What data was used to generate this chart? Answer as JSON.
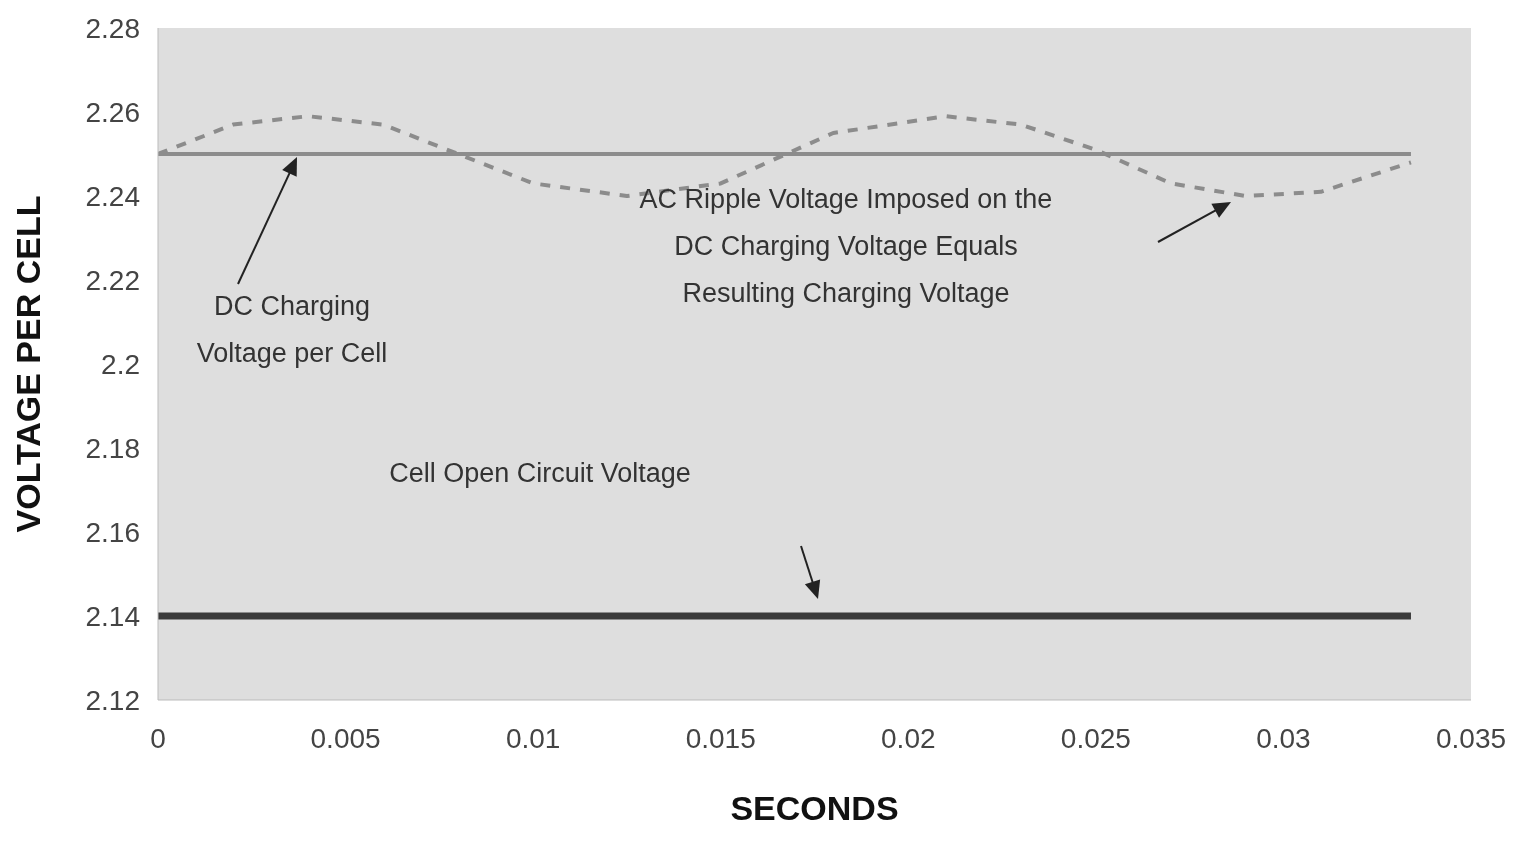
{
  "chart_data": {
    "type": "line",
    "xlabel": "SECONDS",
    "ylabel": "VOLTAGE PER CELL",
    "xlim": [
      0,
      0.035
    ],
    "xticks": [
      0,
      0.005,
      0.01,
      0.015,
      0.02,
      0.025,
      0.03,
      0.035
    ],
    "ylim": [
      2.12,
      2.28
    ],
    "yticks": [
      2.12,
      2.14,
      2.16,
      2.18,
      2.2,
      2.22,
      2.24,
      2.26,
      2.28
    ],
    "grid": false,
    "marker": "none",
    "series": [
      {
        "color": "#8c8c8c",
        "line_style": "solid",
        "x": [
          0,
          0.0334
        ],
        "values": [
          2.25,
          2.25
        ]
      },
      {
        "color": "#3a3a3a",
        "line_style": "solid",
        "x": [
          0,
          0.0334
        ],
        "values": [
          2.14,
          2.14
        ]
      },
      {
        "color": "#8c8c8c",
        "line_style": "dashed",
        "x": [
          0,
          0.002,
          0.004,
          0.006,
          0.008,
          0.01,
          0.0125,
          0.015,
          0.0165,
          0.018,
          0.021,
          0.023,
          0.025,
          0.027,
          0.029,
          0.031,
          0.0334
        ],
        "values": [
          2.25,
          2.257,
          2.259,
          2.257,
          2.25,
          2.243,
          2.24,
          2.243,
          2.249,
          2.255,
          2.259,
          2.257,
          2.251,
          2.243,
          2.24,
          2.241,
          2.248
        ]
      }
    ],
    "annotations": [
      "DC Charging\nVoltage per Cell",
      "AC Ripple Voltage Imposed on the\nDC Charging Voltage Equals\nResulting Charging Voltage",
      "Cell Open Circuit Voltage"
    ]
  }
}
